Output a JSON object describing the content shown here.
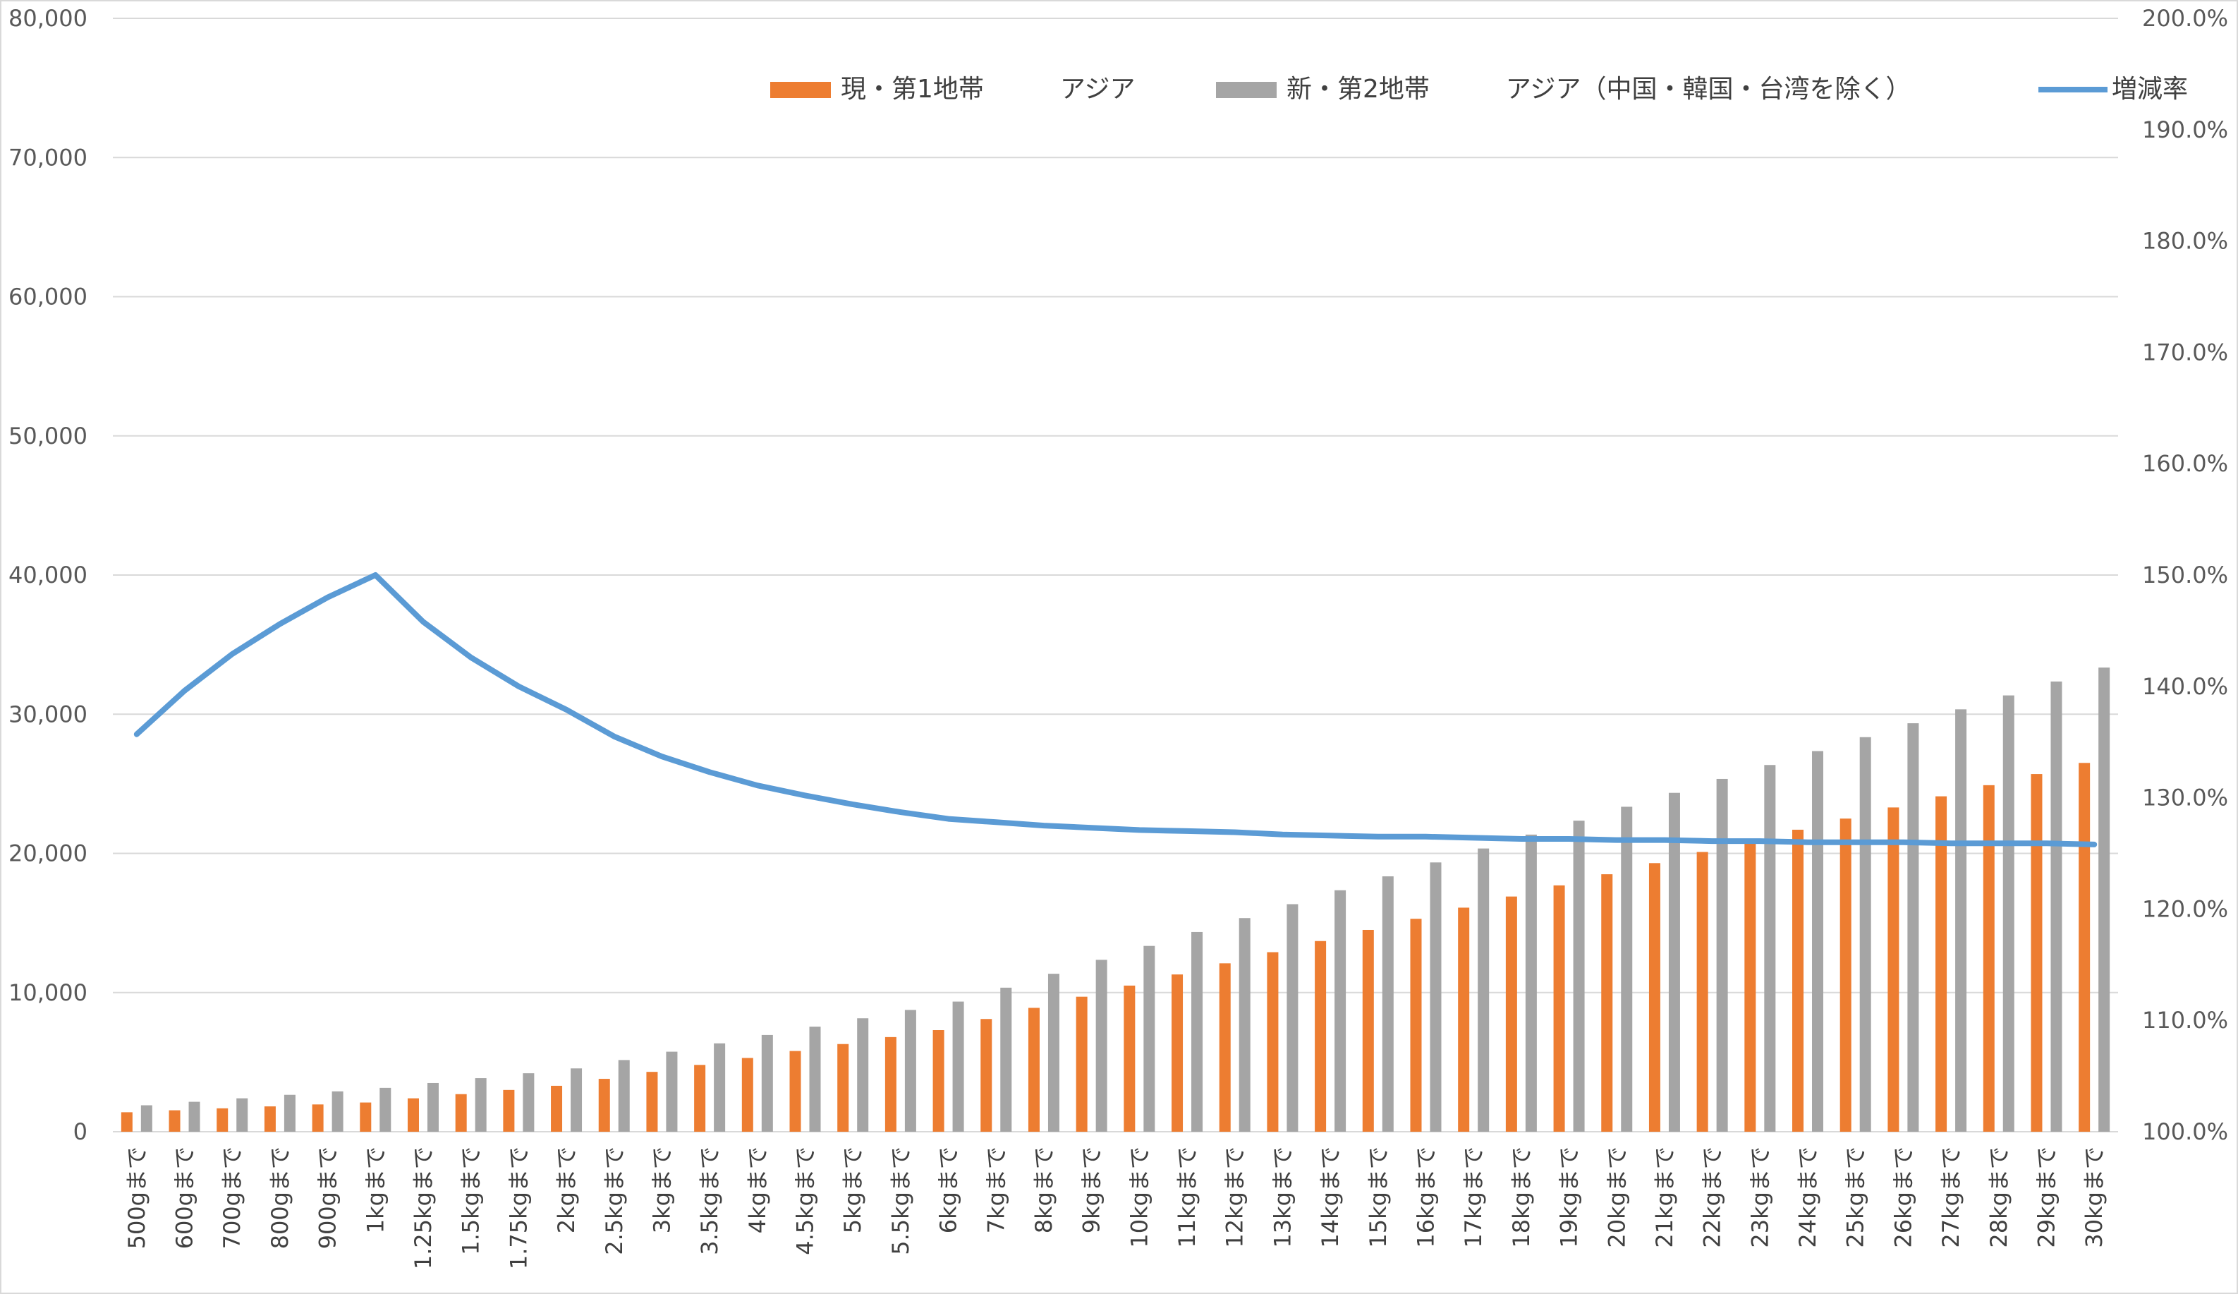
{
  "chart_data": {
    "type": "bar",
    "title": "",
    "xlabel": "",
    "ylabel": "",
    "y_left": {
      "min": 0,
      "max": 80000,
      "step": 10000,
      "tick_labels": [
        "0",
        "10,000",
        "20,000",
        "30,000",
        "40,000",
        "50,000",
        "60,000",
        "70,000",
        "80,000"
      ]
    },
    "y_right": {
      "min": 1.0,
      "max": 2.0,
      "step": 0.1,
      "tick_labels": [
        "100.0%",
        "110.0%",
        "120.0%",
        "130.0%",
        "140.0%",
        "150.0%",
        "160.0%",
        "170.0%",
        "180.0%",
        "190.0%",
        "200.0%"
      ]
    },
    "grid": true,
    "legend_position": "top-right",
    "categories": [
      "500gまで",
      "600gまで",
      "700gまで",
      "800gまで",
      "900gまで",
      "1kgまで",
      "1.25kgまで",
      "1.5kgまで",
      "1.75kgまで",
      "2kgまで",
      "2.5kgまで",
      "3kgまで",
      "3.5kgまで",
      "4kgまで",
      "4.5kgまで",
      "5kgまで",
      "5.5kgまで",
      "6kgまで",
      "7kgまで",
      "8kgまで",
      "9kgまで",
      "10kgまで",
      "11kgまで",
      "12kgまで",
      "13kgまで",
      "14kgまで",
      "15kgまで",
      "16kgまで",
      "17kgまで",
      "18kgまで",
      "19kgまで",
      "20kgまで",
      "21kgまで",
      "22kgまで",
      "23kgまで",
      "24kgまで",
      "25kgまで",
      "26kgまで",
      "27kgまで",
      "28kgまで",
      "29kgまで",
      "30kgまで"
    ],
    "series": [
      {
        "name": "現・第1地帯　　　アジア",
        "type": "bar",
        "axis": "left",
        "color": "#ed7d31",
        "values": [
          1400,
          1540,
          1680,
          1820,
          1960,
          2100,
          2400,
          2700,
          3000,
          3300,
          3800,
          4300,
          4800,
          5300,
          5800,
          6300,
          6800,
          7300,
          8100,
          8900,
          9700,
          10500,
          11300,
          12100,
          12900,
          13700,
          14500,
          15300,
          16100,
          16900,
          17700,
          18500,
          19300,
          20100,
          20900,
          21700,
          22500,
          23300,
          24100,
          24900,
          25700,
          26500
        ]
      },
      {
        "name": "新・第2地帯　　　アジア（中国・韓国・台湾を除く）",
        "type": "bar",
        "axis": "left",
        "color": "#a5a5a5",
        "values": [
          1900,
          2150,
          2400,
          2650,
          2900,
          3150,
          3500,
          3850,
          4200,
          4550,
          5150,
          5750,
          6350,
          6950,
          7550,
          8150,
          8750,
          9350,
          10350,
          11350,
          12350,
          13350,
          14350,
          15350,
          16350,
          17350,
          18350,
          19350,
          20350,
          21350,
          22350,
          23350,
          24350,
          25350,
          26350,
          27350,
          28350,
          29350,
          30350,
          31350,
          32350,
          33350
        ]
      },
      {
        "name": "増減率",
        "type": "line",
        "axis": "right",
        "color": "#5b9bd5",
        "values": [
          1.357,
          1.396,
          1.429,
          1.456,
          1.48,
          1.5,
          1.458,
          1.426,
          1.4,
          1.379,
          1.355,
          1.337,
          1.323,
          1.311,
          1.302,
          1.294,
          1.287,
          1.281,
          1.278,
          1.275,
          1.273,
          1.271,
          1.27,
          1.269,
          1.267,
          1.266,
          1.265,
          1.265,
          1.264,
          1.263,
          1.263,
          1.262,
          1.262,
          1.261,
          1.261,
          1.26,
          1.26,
          1.26,
          1.259,
          1.259,
          1.259,
          1.258
        ]
      }
    ]
  },
  "legend": {
    "items": [
      {
        "label": "現・第1地帯　　　アジア",
        "color": "#ed7d31",
        "kind": "bar"
      },
      {
        "label": "新・第2地帯　　　アジア（中国・韓国・台湾を除く）",
        "color": "#a5a5a5",
        "kind": "bar"
      },
      {
        "label": "増減率",
        "color": "#5b9bd5",
        "kind": "line"
      }
    ]
  }
}
